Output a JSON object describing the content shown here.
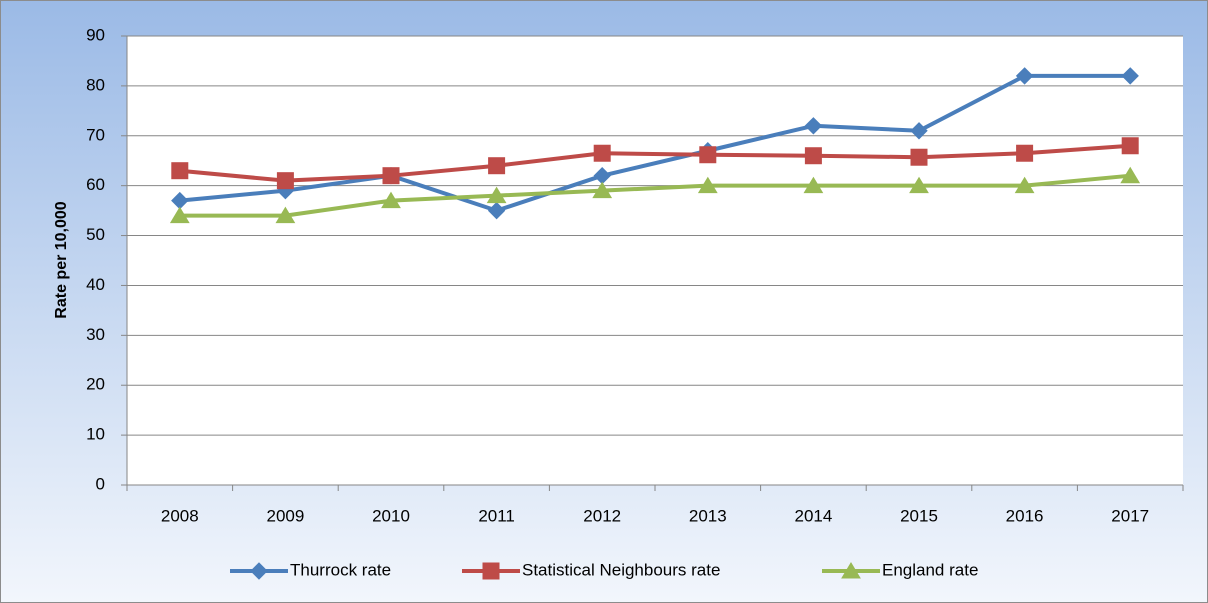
{
  "chart_data": {
    "type": "line",
    "y_label": "Rate per 10,000",
    "categories": [
      "2008",
      "2009",
      "2010",
      "2011",
      "2012",
      "2013",
      "2014",
      "2015",
      "2016",
      "2017"
    ],
    "series": [
      {
        "name": "Thurrock rate",
        "color": "#4a7ebb",
        "marker": "diamond",
        "values": [
          57,
          59,
          62,
          55,
          62,
          67,
          72,
          71,
          82,
          82
        ]
      },
      {
        "name": "Statistical Neighbours rate",
        "color": "#be4b48",
        "marker": "square",
        "values": [
          63,
          61,
          62,
          64,
          66.5,
          66.2,
          66,
          65.7,
          66.5,
          68
        ]
      },
      {
        "name": "England rate",
        "color": "#98b954",
        "marker": "triangle",
        "values": [
          54,
          54,
          57,
          58,
          59,
          60,
          60,
          60,
          60,
          62
        ]
      }
    ],
    "ylim": [
      0,
      90
    ],
    "yticks": [
      0,
      10,
      20,
      30,
      40,
      50,
      60,
      70,
      80,
      90
    ],
    "grid": true,
    "legend": "bottom"
  }
}
